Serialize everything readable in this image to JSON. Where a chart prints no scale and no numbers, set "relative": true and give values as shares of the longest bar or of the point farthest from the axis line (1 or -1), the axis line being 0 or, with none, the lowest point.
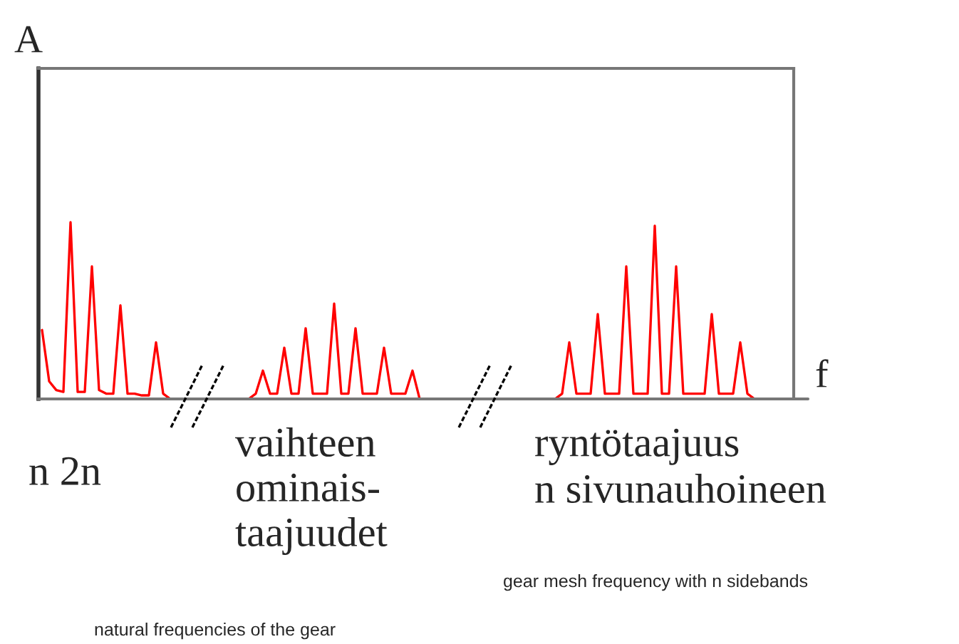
{
  "chart_data": {
    "type": "line",
    "relative": true,
    "ylabel": "A",
    "xlabel": "f",
    "color": "#ff0000",
    "categories": [
      null,
      null,
      null,
      null,
      null,
      null,
      null,
      null,
      null,
      null,
      null,
      null,
      null,
      null,
      null,
      null,
      null,
      null,
      null,
      null,
      null,
      null,
      null,
      null,
      null,
      null,
      null,
      null,
      null,
      null,
      null,
      null,
      null,
      null,
      null,
      null,
      null,
      null,
      null,
      null,
      null,
      null,
      null,
      null,
      null,
      null,
      null,
      null,
      null,
      null,
      null,
      null,
      null,
      null,
      null,
      null,
      null,
      null,
      null,
      null,
      null,
      null,
      null,
      null,
      null,
      null,
      null,
      null,
      null,
      null,
      null,
      null,
      null,
      null,
      null,
      null,
      null,
      null,
      null,
      null,
      null,
      null,
      null,
      null,
      null,
      null,
      null,
      null,
      null,
      null,
      null,
      null,
      null,
      null,
      null,
      null,
      null,
      null,
      null,
      null,
      null,
      null,
      null,
      null,
      null,
      null
    ],
    "values": [
      0.39,
      0.1,
      0.05,
      0.04,
      1.0,
      0.04,
      0.04,
      0.75,
      0.05,
      0.03,
      0.03,
      0.53,
      0.03,
      0.03,
      0.02,
      0.02,
      0.32,
      0.03,
      0,
      0,
      0,
      0,
      0,
      0,
      0,
      0,
      0,
      0,
      0,
      0,
      0.03,
      0.16,
      0.03,
      0.03,
      0.29,
      0.03,
      0.03,
      0.4,
      0.03,
      0.03,
      0.03,
      0.54,
      0.03,
      0.03,
      0.4,
      0.03,
      0.03,
      0.03,
      0.29,
      0.03,
      0.03,
      0.03,
      0.16,
      0,
      0,
      0,
      0,
      0,
      0,
      0,
      0,
      0,
      0,
      0,
      0,
      0,
      0,
      0,
      0,
      0,
      0,
      0,
      0,
      0.03,
      0.32,
      0.03,
      0.03,
      0.03,
      0.48,
      0.03,
      0.03,
      0.03,
      0.75,
      0.03,
      0.03,
      0.03,
      0.98,
      0.03,
      0.03,
      0.75,
      0.03,
      0.03,
      0.03,
      0.03,
      0.48,
      0.03,
      0.03,
      0.03,
      0.32,
      0.03,
      0,
      0,
      null,
      null,
      null,
      null
    ],
    "annotations": [
      "n 2n",
      "vaihteen\nominais-\ntaajuudet",
      "ryntötaajuus\nn sivunauhoineen",
      "gear mesh frequency with n sidebands",
      "natural frequencies of the gear"
    ],
    "grid": false,
    "legend": false
  }
}
